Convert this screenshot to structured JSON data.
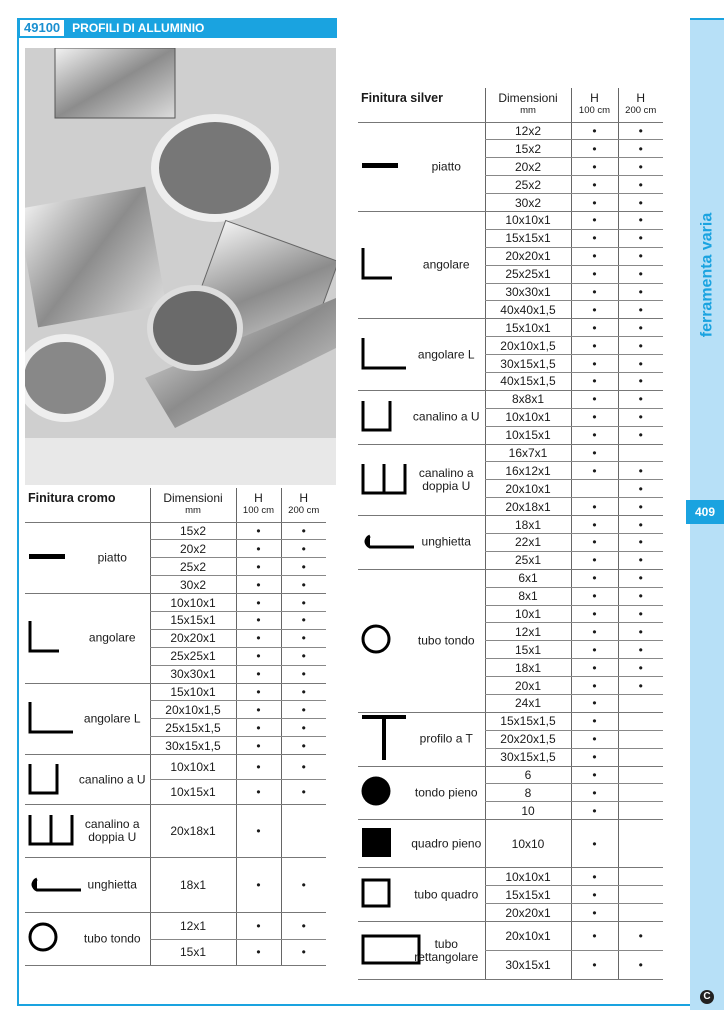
{
  "header": {
    "code": "49100",
    "title": "PROFILI DI ALLUMINIO"
  },
  "sidebar": {
    "section": "ferramenta varia",
    "page_number": "409",
    "logo": "C"
  },
  "colors": {
    "accent": "#1aa3e0",
    "sidebar_bg": "#b7e0f7"
  },
  "columns": {
    "dimension": "Dimensioni",
    "dimension_unit": "mm",
    "h": "H",
    "h100": "100 cm",
    "h200": "200 cm"
  },
  "tables": [
    {
      "finish": "Finitura cromo",
      "groups": [
        {
          "label": "piatto",
          "icon": "flat-bar-icon",
          "rows": [
            {
              "dim": "15x2",
              "h100": true,
              "h200": true
            },
            {
              "dim": "20x2",
              "h100": true,
              "h200": true
            },
            {
              "dim": "25x2",
              "h100": true,
              "h200": true
            },
            {
              "dim": "30x2",
              "h100": true,
              "h200": true
            }
          ]
        },
        {
          "label": "angolare",
          "icon": "angle-icon",
          "rows": [
            {
              "dim": "10x10x1",
              "h100": true,
              "h200": true
            },
            {
              "dim": "15x15x1",
              "h100": true,
              "h200": true
            },
            {
              "dim": "20x20x1",
              "h100": true,
              "h200": true
            },
            {
              "dim": "25x25x1",
              "h100": true,
              "h200": true
            },
            {
              "dim": "30x30x1",
              "h100": true,
              "h200": true
            }
          ]
        },
        {
          "label": "angolare L",
          "icon": "l-angle-icon",
          "rows": [
            {
              "dim": "15x10x1",
              "h100": true,
              "h200": true
            },
            {
              "dim": "20x10x1,5",
              "h100": true,
              "h200": true
            },
            {
              "dim": "25x15x1,5",
              "h100": true,
              "h200": true
            },
            {
              "dim": "30x15x1,5",
              "h100": true,
              "h200": true
            }
          ]
        },
        {
          "label": "canalino a U",
          "icon": "u-channel-icon",
          "rows": [
            {
              "dim": "10x10x1",
              "h100": true,
              "h200": true
            },
            {
              "dim": "10x15x1",
              "h100": true,
              "h200": true
            }
          ]
        },
        {
          "label": "canalino a doppia U",
          "icon": "double-u-channel-icon",
          "rows": [
            {
              "dim": "20x18x1",
              "h100": true,
              "h200": false
            }
          ]
        },
        {
          "label": "unghietta",
          "icon": "edge-profile-icon",
          "rows": [
            {
              "dim": "18x1",
              "h100": true,
              "h200": true
            }
          ]
        },
        {
          "label": "tubo tondo",
          "icon": "round-tube-icon",
          "rows": [
            {
              "dim": "12x1",
              "h100": true,
              "h200": true
            },
            {
              "dim": "15x1",
              "h100": true,
              "h200": true
            }
          ]
        }
      ]
    },
    {
      "finish": "Finitura silver",
      "groups": [
        {
          "label": "piatto",
          "icon": "flat-bar-icon",
          "rows": [
            {
              "dim": "12x2",
              "h100": true,
              "h200": true
            },
            {
              "dim": "15x2",
              "h100": true,
              "h200": true
            },
            {
              "dim": "20x2",
              "h100": true,
              "h200": true
            },
            {
              "dim": "25x2",
              "h100": true,
              "h200": true
            },
            {
              "dim": "30x2",
              "h100": true,
              "h200": true
            }
          ]
        },
        {
          "label": "angolare",
          "icon": "angle-icon",
          "rows": [
            {
              "dim": "10x10x1",
              "h100": true,
              "h200": true
            },
            {
              "dim": "15x15x1",
              "h100": true,
              "h200": true
            },
            {
              "dim": "20x20x1",
              "h100": true,
              "h200": true
            },
            {
              "dim": "25x25x1",
              "h100": true,
              "h200": true
            },
            {
              "dim": "30x30x1",
              "h100": true,
              "h200": true
            },
            {
              "dim": "40x40x1,5",
              "h100": true,
              "h200": true
            }
          ]
        },
        {
          "label": "angolare L",
          "icon": "l-angle-icon",
          "rows": [
            {
              "dim": "15x10x1",
              "h100": true,
              "h200": true
            },
            {
              "dim": "20x10x1,5",
              "h100": true,
              "h200": true
            },
            {
              "dim": "30x15x1,5",
              "h100": true,
              "h200": true
            },
            {
              "dim": "40x15x1,5",
              "h100": true,
              "h200": true
            }
          ]
        },
        {
          "label": "canalino a U",
          "icon": "u-channel-icon",
          "rows": [
            {
              "dim": "8x8x1",
              "h100": true,
              "h200": true
            },
            {
              "dim": "10x10x1",
              "h100": true,
              "h200": true
            },
            {
              "dim": "10x15x1",
              "h100": true,
              "h200": true
            }
          ]
        },
        {
          "label": "canalino a doppia U",
          "icon": "double-u-channel-icon",
          "rows": [
            {
              "dim": "16x7x1",
              "h100": true,
              "h200": false
            },
            {
              "dim": "16x12x1",
              "h100": true,
              "h200": true
            },
            {
              "dim": "20x10x1",
              "h100": false,
              "h200": true
            },
            {
              "dim": "20x18x1",
              "h100": true,
              "h200": true
            }
          ]
        },
        {
          "label": "unghietta",
          "icon": "edge-profile-icon",
          "rows": [
            {
              "dim": "18x1",
              "h100": true,
              "h200": true
            },
            {
              "dim": "22x1",
              "h100": true,
              "h200": true
            },
            {
              "dim": "25x1",
              "h100": true,
              "h200": true
            }
          ]
        },
        {
          "label": "tubo tondo",
          "icon": "round-tube-icon",
          "rows": [
            {
              "dim": "6x1",
              "h100": true,
              "h200": true
            },
            {
              "dim": "8x1",
              "h100": true,
              "h200": true
            },
            {
              "dim": "10x1",
              "h100": true,
              "h200": true
            },
            {
              "dim": "12x1",
              "h100": true,
              "h200": true
            },
            {
              "dim": "15x1",
              "h100": true,
              "h200": true
            },
            {
              "dim": "18x1",
              "h100": true,
              "h200": true
            },
            {
              "dim": "20x1",
              "h100": true,
              "h200": true
            },
            {
              "dim": "24x1",
              "h100": true,
              "h200": false
            }
          ]
        },
        {
          "label": "profilo a T",
          "icon": "t-profile-icon",
          "rows": [
            {
              "dim": "15x15x1,5",
              "h100": true,
              "h200": false
            },
            {
              "dim": "20x20x1,5",
              "h100": true,
              "h200": false
            },
            {
              "dim": "30x15x1,5",
              "h100": true,
              "h200": false
            }
          ]
        },
        {
          "label": "tondo pieno",
          "icon": "solid-round-icon",
          "rows": [
            {
              "dim": "6",
              "h100": true,
              "h200": false
            },
            {
              "dim": "8",
              "h100": true,
              "h200": false
            },
            {
              "dim": "10",
              "h100": true,
              "h200": false
            }
          ]
        },
        {
          "label": "quadro pieno",
          "icon": "solid-square-icon",
          "rows": [
            {
              "dim": "10x10",
              "h100": true,
              "h200": false
            }
          ]
        },
        {
          "label": "tubo quadro",
          "icon": "square-tube-icon",
          "rows": [
            {
              "dim": "10x10x1",
              "h100": true,
              "h200": false
            },
            {
              "dim": "15x15x1",
              "h100": true,
              "h200": false
            },
            {
              "dim": "20x20x1",
              "h100": true,
              "h200": false
            }
          ]
        },
        {
          "label": "tubo rettangolare",
          "icon": "rect-tube-icon",
          "rows": [
            {
              "dim": "20x10x1",
              "h100": true,
              "h200": true
            },
            {
              "dim": "30x15x1",
              "h100": true,
              "h200": true
            }
          ]
        }
      ]
    }
  ]
}
